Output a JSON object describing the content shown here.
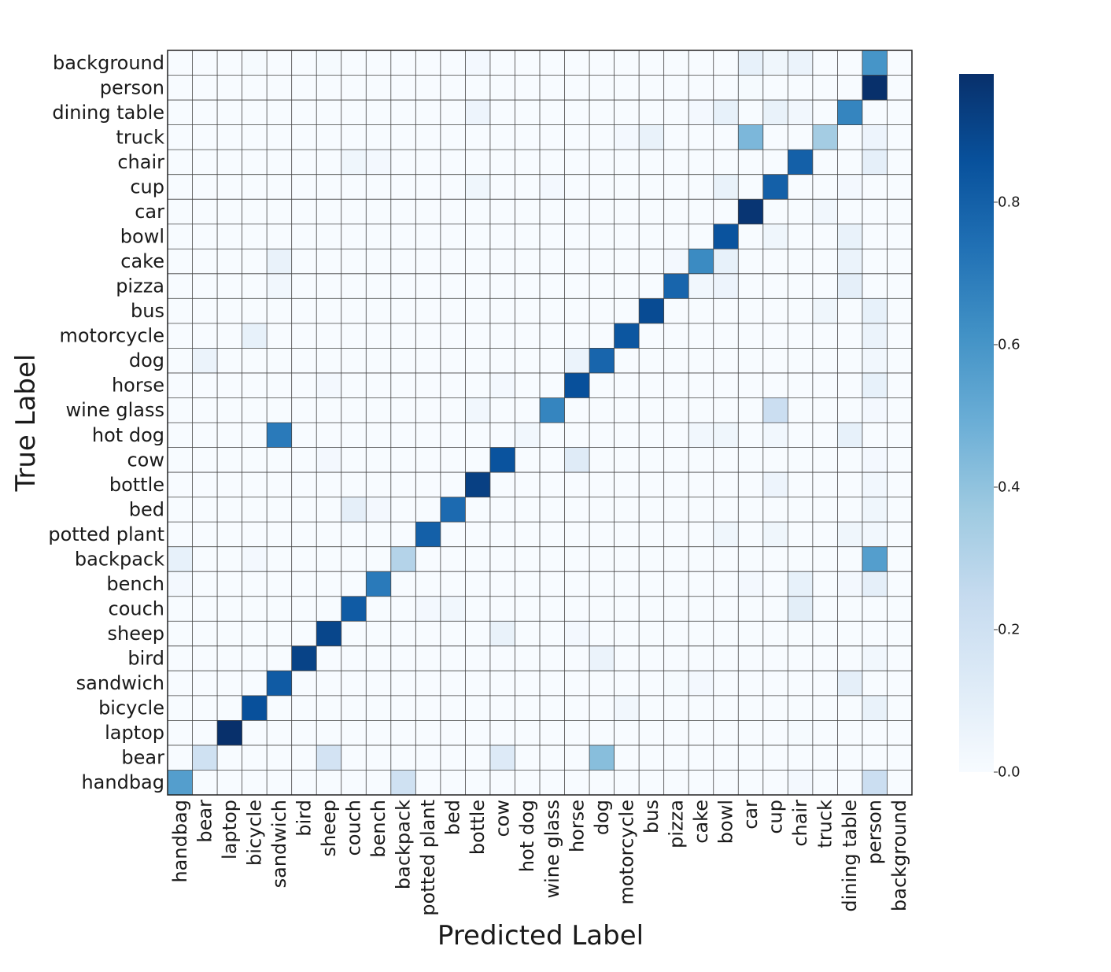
{
  "chart_data": {
    "type": "heatmap",
    "xlabel": "Predicted Label",
    "ylabel": "True Label",
    "rows": [
      "background",
      "person",
      "dining table",
      "truck",
      "chair",
      "cup",
      "car",
      "bowl",
      "cake",
      "pizza",
      "bus",
      "motorcycle",
      "dog",
      "horse",
      "wine glass",
      "hot dog",
      "cow",
      "bottle",
      "bed",
      "potted plant",
      "backpack",
      "bench",
      "couch",
      "sheep",
      "bird",
      "sandwich",
      "bicycle",
      "laptop",
      "bear",
      "handbag"
    ],
    "cols": [
      "handbag",
      "bear",
      "laptop",
      "bicycle",
      "sandwich",
      "bird",
      "sheep",
      "couch",
      "bench",
      "backpack",
      "potted plant",
      "bed",
      "bottle",
      "cow",
      "hot dog",
      "wine glass",
      "horse",
      "dog",
      "motorcycle",
      "bus",
      "pizza",
      "cake",
      "bowl",
      "car",
      "cup",
      "chair",
      "truck",
      "dining table",
      "person",
      "background"
    ],
    "cells": [
      {
        "r": 0,
        "c": 28,
        "v": 0.6
      },
      {
        "r": 0,
        "c": 23,
        "v": 0.08
      },
      {
        "r": 0,
        "c": 24,
        "v": 0.04
      },
      {
        "r": 0,
        "c": 25,
        "v": 0.06
      },
      {
        "r": 0,
        "c": 12,
        "v": 0.02
      },
      {
        "r": 0,
        "c": 3,
        "v": 0.01
      },
      {
        "r": 0,
        "c": 6,
        "v": 0.01
      },
      {
        "r": 1,
        "c": 28,
        "v": 0.98
      },
      {
        "r": 1,
        "c": 23,
        "v": 0.01
      },
      {
        "r": 2,
        "c": 27,
        "v": 0.66
      },
      {
        "r": 2,
        "c": 22,
        "v": 0.08
      },
      {
        "r": 2,
        "c": 24,
        "v": 0.07
      },
      {
        "r": 2,
        "c": 12,
        "v": 0.05
      },
      {
        "r": 2,
        "c": 25,
        "v": 0.03
      },
      {
        "r": 2,
        "c": 21,
        "v": 0.02
      },
      {
        "r": 3,
        "c": 23,
        "v": 0.45
      },
      {
        "r": 3,
        "c": 26,
        "v": 0.35
      },
      {
        "r": 3,
        "c": 19,
        "v": 0.07
      },
      {
        "r": 3,
        "c": 28,
        "v": 0.05
      },
      {
        "r": 3,
        "c": 18,
        "v": 0.02
      },
      {
        "r": 4,
        "c": 25,
        "v": 0.8
      },
      {
        "r": 4,
        "c": 28,
        "v": 0.09
      },
      {
        "r": 4,
        "c": 7,
        "v": 0.04
      },
      {
        "r": 4,
        "c": 8,
        "v": 0.02
      },
      {
        "r": 5,
        "c": 24,
        "v": 0.8
      },
      {
        "r": 5,
        "c": 22,
        "v": 0.07
      },
      {
        "r": 5,
        "c": 12,
        "v": 0.04
      },
      {
        "r": 5,
        "c": 15,
        "v": 0.02
      },
      {
        "r": 5,
        "c": 27,
        "v": 0.02
      },
      {
        "r": 6,
        "c": 23,
        "v": 0.96
      },
      {
        "r": 6,
        "c": 26,
        "v": 0.03
      },
      {
        "r": 7,
        "c": 22,
        "v": 0.85
      },
      {
        "r": 7,
        "c": 27,
        "v": 0.07
      },
      {
        "r": 7,
        "c": 24,
        "v": 0.04
      },
      {
        "r": 8,
        "c": 21,
        "v": 0.64
      },
      {
        "r": 8,
        "c": 22,
        "v": 0.08
      },
      {
        "r": 8,
        "c": 4,
        "v": 0.07
      },
      {
        "r": 8,
        "c": 27,
        "v": 0.06
      },
      {
        "r": 8,
        "c": 20,
        "v": 0.02
      },
      {
        "r": 9,
        "c": 20,
        "v": 0.78
      },
      {
        "r": 9,
        "c": 27,
        "v": 0.09
      },
      {
        "r": 9,
        "c": 22,
        "v": 0.05
      },
      {
        "r": 9,
        "c": 21,
        "v": 0.03
      },
      {
        "r": 9,
        "c": 4,
        "v": 0.03
      },
      {
        "r": 10,
        "c": 19,
        "v": 0.88
      },
      {
        "r": 10,
        "c": 28,
        "v": 0.08
      },
      {
        "r": 10,
        "c": 26,
        "v": 0.04
      },
      {
        "r": 11,
        "c": 18,
        "v": 0.84
      },
      {
        "r": 11,
        "c": 3,
        "v": 0.08
      },
      {
        "r": 11,
        "c": 28,
        "v": 0.06
      },
      {
        "r": 12,
        "c": 17,
        "v": 0.78
      },
      {
        "r": 12,
        "c": 16,
        "v": 0.06
      },
      {
        "r": 12,
        "c": 1,
        "v": 0.06
      },
      {
        "r": 12,
        "c": 28,
        "v": 0.03
      },
      {
        "r": 13,
        "c": 16,
        "v": 0.86
      },
      {
        "r": 13,
        "c": 28,
        "v": 0.08
      },
      {
        "r": 13,
        "c": 13,
        "v": 0.02
      },
      {
        "r": 13,
        "c": 6,
        "v": 0.02
      },
      {
        "r": 14,
        "c": 15,
        "v": 0.66
      },
      {
        "r": 14,
        "c": 24,
        "v": 0.22
      },
      {
        "r": 14,
        "c": 12,
        "v": 0.03
      },
      {
        "r": 14,
        "c": 28,
        "v": 0.02
      },
      {
        "r": 15,
        "c": 4,
        "v": 0.7
      },
      {
        "r": 15,
        "c": 27,
        "v": 0.08
      },
      {
        "r": 15,
        "c": 22,
        "v": 0.04
      },
      {
        "r": 15,
        "c": 21,
        "v": 0.03
      },
      {
        "r": 15,
        "c": 14,
        "v": 0.03
      },
      {
        "r": 15,
        "c": 24,
        "v": 0.03
      },
      {
        "r": 16,
        "c": 13,
        "v": 0.85
      },
      {
        "r": 16,
        "c": 16,
        "v": 0.12
      },
      {
        "r": 16,
        "c": 6,
        "v": 0.02
      },
      {
        "r": 16,
        "c": 28,
        "v": 0.02
      },
      {
        "r": 17,
        "c": 12,
        "v": 0.92
      },
      {
        "r": 17,
        "c": 24,
        "v": 0.05
      },
      {
        "r": 17,
        "c": 28,
        "v": 0.03
      },
      {
        "r": 18,
        "c": 11,
        "v": 0.76
      },
      {
        "r": 18,
        "c": 7,
        "v": 0.09
      },
      {
        "r": 18,
        "c": 28,
        "v": 0.04
      },
      {
        "r": 18,
        "c": 8,
        "v": 0.02
      },
      {
        "r": 19,
        "c": 10,
        "v": 0.8
      },
      {
        "r": 19,
        "c": 22,
        "v": 0.04
      },
      {
        "r": 19,
        "c": 24,
        "v": 0.04
      },
      {
        "r": 19,
        "c": 27,
        "v": 0.04
      },
      {
        "r": 19,
        "c": 28,
        "v": 0.03
      },
      {
        "r": 20,
        "c": 28,
        "v": 0.56
      },
      {
        "r": 20,
        "c": 9,
        "v": 0.3
      },
      {
        "r": 20,
        "c": 0,
        "v": 0.08
      },
      {
        "r": 20,
        "c": 3,
        "v": 0.02
      },
      {
        "r": 21,
        "c": 8,
        "v": 0.7
      },
      {
        "r": 21,
        "c": 28,
        "v": 0.09
      },
      {
        "r": 21,
        "c": 25,
        "v": 0.08
      },
      {
        "r": 21,
        "c": 23,
        "v": 0.02
      },
      {
        "r": 21,
        "c": 27,
        "v": 0.02
      },
      {
        "r": 21,
        "c": 0,
        "v": 0.02
      },
      {
        "r": 22,
        "c": 7,
        "v": 0.82
      },
      {
        "r": 22,
        "c": 25,
        "v": 0.1
      },
      {
        "r": 22,
        "c": 11,
        "v": 0.03
      },
      {
        "r": 22,
        "c": 10,
        "v": 0.02
      },
      {
        "r": 23,
        "c": 6,
        "v": 0.9
      },
      {
        "r": 23,
        "c": 13,
        "v": 0.07
      },
      {
        "r": 23,
        "c": 16,
        "v": 0.02
      },
      {
        "r": 24,
        "c": 5,
        "v": 0.91
      },
      {
        "r": 24,
        "c": 17,
        "v": 0.06
      },
      {
        "r": 24,
        "c": 28,
        "v": 0.03
      },
      {
        "r": 25,
        "c": 4,
        "v": 0.82
      },
      {
        "r": 25,
        "c": 27,
        "v": 0.09
      },
      {
        "r": 25,
        "c": 21,
        "v": 0.02
      },
      {
        "r": 25,
        "c": 20,
        "v": 0.01
      },
      {
        "r": 26,
        "c": 3,
        "v": 0.86
      },
      {
        "r": 26,
        "c": 28,
        "v": 0.07
      },
      {
        "r": 26,
        "c": 18,
        "v": 0.03
      },
      {
        "r": 27,
        "c": 2,
        "v": 0.98
      },
      {
        "r": 27,
        "c": 25,
        "v": 0.01
      },
      {
        "r": 28,
        "c": 17,
        "v": 0.42
      },
      {
        "r": 28,
        "c": 1,
        "v": 0.2
      },
      {
        "r": 28,
        "c": 6,
        "v": 0.18
      },
      {
        "r": 28,
        "c": 13,
        "v": 0.13
      },
      {
        "r": 29,
        "c": 0,
        "v": 0.56
      },
      {
        "r": 29,
        "c": 9,
        "v": 0.2
      },
      {
        "r": 29,
        "c": 28,
        "v": 0.22
      },
      {
        "r": 29,
        "c": 25,
        "v": 0.02
      }
    ],
    "colorbar": {
      "vmin": 0.0,
      "vmax": 0.98,
      "ticks": [
        0.0,
        0.2,
        0.4,
        0.6,
        0.8
      ],
      "tick_labels": [
        "0.0",
        "0.2",
        "0.4",
        "0.6",
        "0.8"
      ],
      "colors": [
        "#f7fbff",
        "#deebf7",
        "#c6dbef",
        "#9ecae1",
        "#6baed6",
        "#4292c6",
        "#2171b5",
        "#08519c",
        "#08306b"
      ]
    },
    "grid": true,
    "grid_color": "#444444"
  }
}
